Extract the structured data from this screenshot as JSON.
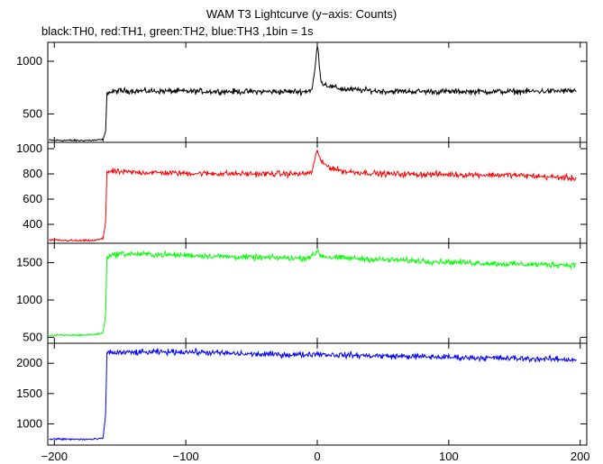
{
  "chart_data": {
    "type": "line",
    "title": "WAM T3 Lightcurve (y−axis: Counts)",
    "subtitle": "black:TH0, red:TH1, green:TH2, blue:TH3 ,1bin = 1s",
    "x_range": [
      -205,
      205
    ],
    "x_ticks": [
      -200,
      -100,
      0,
      100,
      200
    ],
    "x_tick_labels": [
      "−200",
      "−100",
      "0",
      "100",
      "200"
    ],
    "panels": [
      {
        "series_label": "TH0",
        "color": "#000000",
        "ylim": [
          230,
          1180
        ],
        "y_ticks": [
          500,
          1000
        ],
        "y_tick_labels": [
          "500",
          "1000"
        ],
        "points": [
          [
            -204,
            250
          ],
          [
            -180,
            248
          ],
          [
            -170,
            250
          ],
          [
            -163,
            255
          ],
          [
            -161,
            330
          ],
          [
            -160,
            700
          ],
          [
            -150,
            720
          ],
          [
            -100,
            715
          ],
          [
            -50,
            712
          ],
          [
            -10,
            712
          ],
          [
            -4,
            730
          ],
          [
            -2,
            900
          ],
          [
            0,
            1150
          ],
          [
            1,
            1050
          ],
          [
            3,
            800
          ],
          [
            10,
            760
          ],
          [
            20,
            735
          ],
          [
            50,
            715
          ],
          [
            100,
            712
          ],
          [
            150,
            712
          ],
          [
            197,
            720
          ]
        ]
      },
      {
        "series_label": "TH1",
        "color": "#ff0000",
        "ylim": [
          250,
          1050
        ],
        "y_ticks": [
          400,
          600,
          800,
          1000
        ],
        "y_tick_labels": [
          "400",
          "600",
          "800",
          "1000"
        ],
        "points": [
          [
            -204,
            275
          ],
          [
            -180,
            270
          ],
          [
            -170,
            272
          ],
          [
            -163,
            285
          ],
          [
            -161,
            420
          ],
          [
            -160,
            820
          ],
          [
            -150,
            815
          ],
          [
            -100,
            805
          ],
          [
            -50,
            800
          ],
          [
            -10,
            800
          ],
          [
            -4,
            815
          ],
          [
            -2,
            900
          ],
          [
            0,
            1000
          ],
          [
            1,
            960
          ],
          [
            3,
            890
          ],
          [
            10,
            850
          ],
          [
            20,
            820
          ],
          [
            50,
            800
          ],
          [
            100,
            795
          ],
          [
            150,
            790
          ],
          [
            197,
            765
          ]
        ]
      },
      {
        "series_label": "TH2",
        "color": "#00ff00",
        "ylim": [
          420,
          1760
        ],
        "y_ticks": [
          500,
          1000,
          1500
        ],
        "y_tick_labels": [
          "500",
          "1000",
          "1500"
        ],
        "points": [
          [
            -204,
            525
          ],
          [
            -180,
            530
          ],
          [
            -170,
            535
          ],
          [
            -163,
            560
          ],
          [
            -161,
            800
          ],
          [
            -160,
            1590
          ],
          [
            -150,
            1620
          ],
          [
            -100,
            1600
          ],
          [
            -50,
            1570
          ],
          [
            -10,
            1560
          ],
          [
            -2,
            1600
          ],
          [
            0,
            1680
          ],
          [
            2,
            1600
          ],
          [
            10,
            1570
          ],
          [
            50,
            1540
          ],
          [
            100,
            1510
          ],
          [
            150,
            1480
          ],
          [
            197,
            1470
          ]
        ]
      },
      {
        "series_label": "TH3",
        "color": "#0000ff",
        "ylim": [
          650,
          2330
        ],
        "y_ticks": [
          1000,
          1500,
          2000
        ],
        "y_tick_labels": [
          "1000",
          "1500",
          "2000"
        ],
        "points": [
          [
            -204,
            750
          ],
          [
            -180,
            745
          ],
          [
            -170,
            745
          ],
          [
            -163,
            760
          ],
          [
            -161,
            1150
          ],
          [
            -160,
            2180
          ],
          [
            -150,
            2175
          ],
          [
            -100,
            2190
          ],
          [
            -50,
            2150
          ],
          [
            -10,
            2140
          ],
          [
            0,
            2160
          ],
          [
            10,
            2140
          ],
          [
            50,
            2120
          ],
          [
            100,
            2100
          ],
          [
            150,
            2080
          ],
          [
            197,
            2060
          ]
        ]
      }
    ]
  }
}
